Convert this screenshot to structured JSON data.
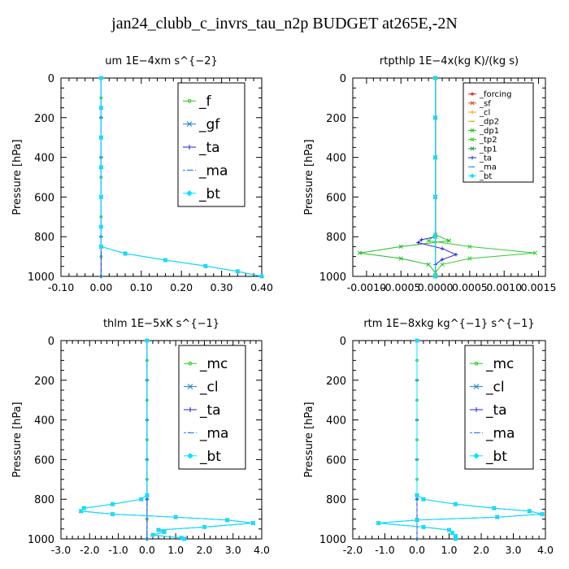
{
  "page": {
    "title": "jan24_clubb_c_invrs_tau_n2p  BUDGET at265E,-2N"
  },
  "chart_data": [
    {
      "type": "line",
      "title": "um  1E−4xm s^{−2}",
      "ylabel": "Pressure [hPa]",
      "ylim": [
        1000,
        0
      ],
      "yticks": [
        "0",
        "200",
        "400",
        "600",
        "800",
        "1000"
      ],
      "xlim": [
        -0.1,
        0.4
      ],
      "xticks": [
        "-0.10",
        "0.00",
        "0.10",
        "0.20",
        "0.30",
        "0.40"
      ],
      "legend_size": "large",
      "series": [
        {
          "name": "_f",
          "color": "#22cc22",
          "marker": "o",
          "x": [
            0,
            0,
            0,
            0,
            0,
            0,
            0,
            0,
            0,
            0,
            0
          ],
          "y": [
            0,
            100,
            200,
            300,
            400,
            500,
            600,
            700,
            800,
            900,
            1000
          ]
        },
        {
          "name": "_gf",
          "color": "#1a7fd6",
          "marker": "x",
          "x": [
            0.0,
            0.0,
            0.0,
            0.0,
            0.0,
            0.0,
            0.0,
            0.06,
            0.16,
            0.26,
            0.34,
            0.4
          ],
          "y": [
            0,
            150,
            300,
            450,
            600,
            750,
            850,
            885,
            918,
            948,
            975,
            1000
          ]
        },
        {
          "name": "_ta",
          "color": "#2222dd",
          "marker": "+",
          "x": [
            0,
            0,
            0,
            0,
            0,
            0
          ],
          "y": [
            0,
            200,
            400,
            600,
            800,
            1000
          ]
        },
        {
          "name": "_ma",
          "color": "#2a7fff",
          "marker": "-",
          "x": [
            0,
            0,
            0,
            0,
            0,
            0
          ],
          "y": [
            0,
            200,
            400,
            600,
            800,
            1000
          ]
        },
        {
          "name": "_bt",
          "color": "#00e5ff",
          "marker": "diamond",
          "x": [
            0.0,
            0.0,
            0.0,
            0.0,
            0.0,
            0.0,
            0.0,
            0.06,
            0.16,
            0.26,
            0.34,
            0.4
          ],
          "y": [
            0,
            150,
            300,
            450,
            600,
            750,
            850,
            885,
            918,
            948,
            975,
            1000
          ]
        }
      ]
    },
    {
      "type": "line",
      "title": "rtpthlp  1E−4x(kg K)/(kg s)",
      "ylabel": "Pressure [hPa]",
      "ylim": [
        1000,
        0
      ],
      "yticks": [
        "0",
        "200",
        "400",
        "600",
        "800",
        "1000"
      ],
      "xlim": [
        -0.0012,
        0.0016
      ],
      "xticks": [
        "-0.0010",
        "-0.0005",
        "0.0000",
        "0.0005",
        "0.0010",
        "0.0015"
      ],
      "legend_size": "small",
      "series": [
        {
          "name": "_forcing",
          "color": "#dd2222",
          "marker": "o",
          "x": [
            0,
            0,
            0,
            0,
            0,
            0
          ],
          "y": [
            0,
            200,
            400,
            600,
            800,
            1000
          ]
        },
        {
          "name": "_sf",
          "color": "#cc5522",
          "marker": "x",
          "x": [
            0,
            0,
            0,
            0,
            0,
            0
          ],
          "y": [
            0,
            200,
            400,
            600,
            800,
            1000
          ]
        },
        {
          "name": "_cl",
          "color": "#ff9900",
          "marker": "+",
          "x": [
            0,
            0,
            0,
            0,
            0,
            0
          ],
          "y": [
            0,
            200,
            400,
            600,
            800,
            1000
          ]
        },
        {
          "name": "_dp2",
          "color": "#ccaa00",
          "marker": "-",
          "x": [
            0,
            0,
            0,
            0,
            0,
            0
          ],
          "y": [
            0,
            200,
            400,
            600,
            800,
            1000
          ]
        },
        {
          "name": "_dp1",
          "color": "#22bb22",
          "marker": "x",
          "x": [
            0,
            0,
            0.0002,
            -0.0005,
            -0.0011,
            -0.0005,
            -0.0001,
            0,
            0
          ],
          "y": [
            0,
            790,
            820,
            850,
            882,
            910,
            940,
            980,
            1000
          ]
        },
        {
          "name": "_tp2",
          "color": "#33cc33",
          "marker": "x",
          "x": [
            0,
            0,
            -0.0001,
            0.0005,
            0.00145,
            0.0005,
            0.0001,
            0,
            0
          ],
          "y": [
            0,
            790,
            820,
            850,
            882,
            910,
            940,
            980,
            1000
          ]
        },
        {
          "name": "_tp1",
          "color": "#229944",
          "marker": "x",
          "x": [
            0,
            0,
            0,
            0,
            0,
            0
          ],
          "y": [
            0,
            200,
            400,
            600,
            800,
            1000
          ]
        },
        {
          "name": "_ta",
          "color": "#2222dd",
          "marker": "+",
          "x": [
            0,
            0,
            -0.0002,
            -0.00025,
            0.0001,
            0.0003,
            0.0001,
            0,
            0
          ],
          "y": [
            0,
            800,
            815,
            830,
            860,
            890,
            915,
            940,
            1000
          ]
        },
        {
          "name": "_ma",
          "color": "#2a7fff",
          "marker": "-",
          "x": [
            0,
            0,
            0,
            0,
            0,
            0
          ],
          "y": [
            0,
            200,
            400,
            600,
            800,
            1000
          ]
        },
        {
          "name": "_bt",
          "color": "#00e5ff",
          "marker": "diamond",
          "x": [
            0,
            0,
            0,
            0,
            0,
            0
          ],
          "y": [
            0,
            200,
            400,
            600,
            800,
            1000
          ]
        }
      ]
    },
    {
      "type": "line",
      "title": "thlm  1E−5xK s^{−1}",
      "ylabel": "Pressure [hPa]",
      "ylim": [
        1000,
        0
      ],
      "yticks": [
        "0",
        "200",
        "400",
        "600",
        "800",
        "1000"
      ],
      "xlim": [
        -3.0,
        4.0
      ],
      "xticks": [
        "-3.0",
        "-2.0",
        "-1.0",
        "0.0",
        "1.0",
        "2.0",
        "3.0",
        "4.0"
      ],
      "legend_size": "large",
      "series": [
        {
          "name": "_mc",
          "color": "#22cc22",
          "marker": "o",
          "x": [
            0,
            0,
            0,
            0,
            0,
            0,
            0,
            0,
            0,
            0,
            0
          ],
          "y": [
            0,
            100,
            200,
            300,
            400,
            500,
            600,
            700,
            800,
            900,
            1000
          ]
        },
        {
          "name": "_cl",
          "color": "#1a7fd6",
          "marker": "x",
          "x": [
            0.0,
            0.0,
            -0.2,
            -1.2,
            -2.2,
            -2.3,
            -1.2,
            1.0,
            2.8,
            3.7,
            2.0,
            0.4,
            0.6,
            0.2,
            1.2,
            1.3
          ],
          "y": [
            0,
            780,
            800,
            825,
            845,
            860,
            875,
            890,
            905,
            920,
            940,
            955,
            965,
            980,
            995,
            1000
          ]
        },
        {
          "name": "_ta",
          "color": "#2222dd",
          "marker": "+",
          "x": [
            0,
            0,
            0,
            0,
            0,
            0
          ],
          "y": [
            0,
            200,
            400,
            600,
            800,
            1000
          ]
        },
        {
          "name": "_ma",
          "color": "#2a7fff",
          "marker": "-",
          "x": [
            0,
            0,
            0,
            0,
            0,
            0
          ],
          "y": [
            0,
            200,
            400,
            600,
            800,
            1000
          ]
        },
        {
          "name": "_bt",
          "color": "#00e5ff",
          "marker": "diamond",
          "x": [
            0.0,
            0.0,
            -0.2,
            -1.2,
            -2.2,
            -2.3,
            -1.2,
            1.0,
            2.8,
            3.7,
            2.0,
            0.4,
            0.6,
            0.2,
            1.2,
            1.3
          ],
          "y": [
            0,
            780,
            800,
            825,
            845,
            860,
            875,
            890,
            905,
            920,
            940,
            955,
            965,
            980,
            995,
            1000
          ]
        }
      ]
    },
    {
      "type": "line",
      "title": "rtm  1E−8xkg kg^{−1} s^{−1}",
      "ylabel": "Pressure [hPa]",
      "ylim": [
        1000,
        0
      ],
      "yticks": [
        "0",
        "200",
        "400",
        "600",
        "800",
        "1000"
      ],
      "xlim": [
        -2.0,
        4.0
      ],
      "xticks": [
        "-2.0",
        "-1.0",
        "0.0",
        "1.0",
        "2.0",
        "3.0",
        "4.0"
      ],
      "legend_size": "large",
      "series": [
        {
          "name": "_mc",
          "color": "#22cc22",
          "marker": "o",
          "x": [
            0,
            0,
            0,
            0,
            0,
            0,
            0,
            0,
            0,
            0,
            0
          ],
          "y": [
            0,
            100,
            200,
            300,
            400,
            500,
            600,
            700,
            800,
            900,
            1000
          ]
        },
        {
          "name": "_cl",
          "color": "#1a7fd6",
          "marker": "x",
          "x": [
            0.0,
            0.0,
            0.2,
            1.2,
            2.4,
            3.5,
            3.9,
            2.5,
            0.0,
            -1.2,
            0.2,
            1.0,
            1.1,
            1.2,
            1.2
          ],
          "y": [
            0,
            780,
            800,
            825,
            845,
            860,
            875,
            890,
            905,
            920,
            940,
            955,
            970,
            985,
            1000
          ]
        },
        {
          "name": "_ta",
          "color": "#2222dd",
          "marker": "+",
          "x": [
            0,
            0,
            0,
            0,
            0,
            0
          ],
          "y": [
            0,
            200,
            400,
            600,
            800,
            1000
          ]
        },
        {
          "name": "_ma",
          "color": "#2a7fff",
          "marker": "-",
          "x": [
            0,
            0,
            0,
            0,
            0,
            0
          ],
          "y": [
            0,
            200,
            400,
            600,
            800,
            1000
          ]
        },
        {
          "name": "_bt",
          "color": "#00e5ff",
          "marker": "diamond",
          "x": [
            0.0,
            0.0,
            0.2,
            1.2,
            2.4,
            3.5,
            3.9,
            2.5,
            0.0,
            -1.2,
            0.2,
            1.0,
            1.1,
            1.2,
            1.2
          ],
          "y": [
            0,
            780,
            800,
            825,
            845,
            860,
            875,
            890,
            905,
            920,
            940,
            955,
            970,
            985,
            1000
          ]
        }
      ]
    }
  ]
}
